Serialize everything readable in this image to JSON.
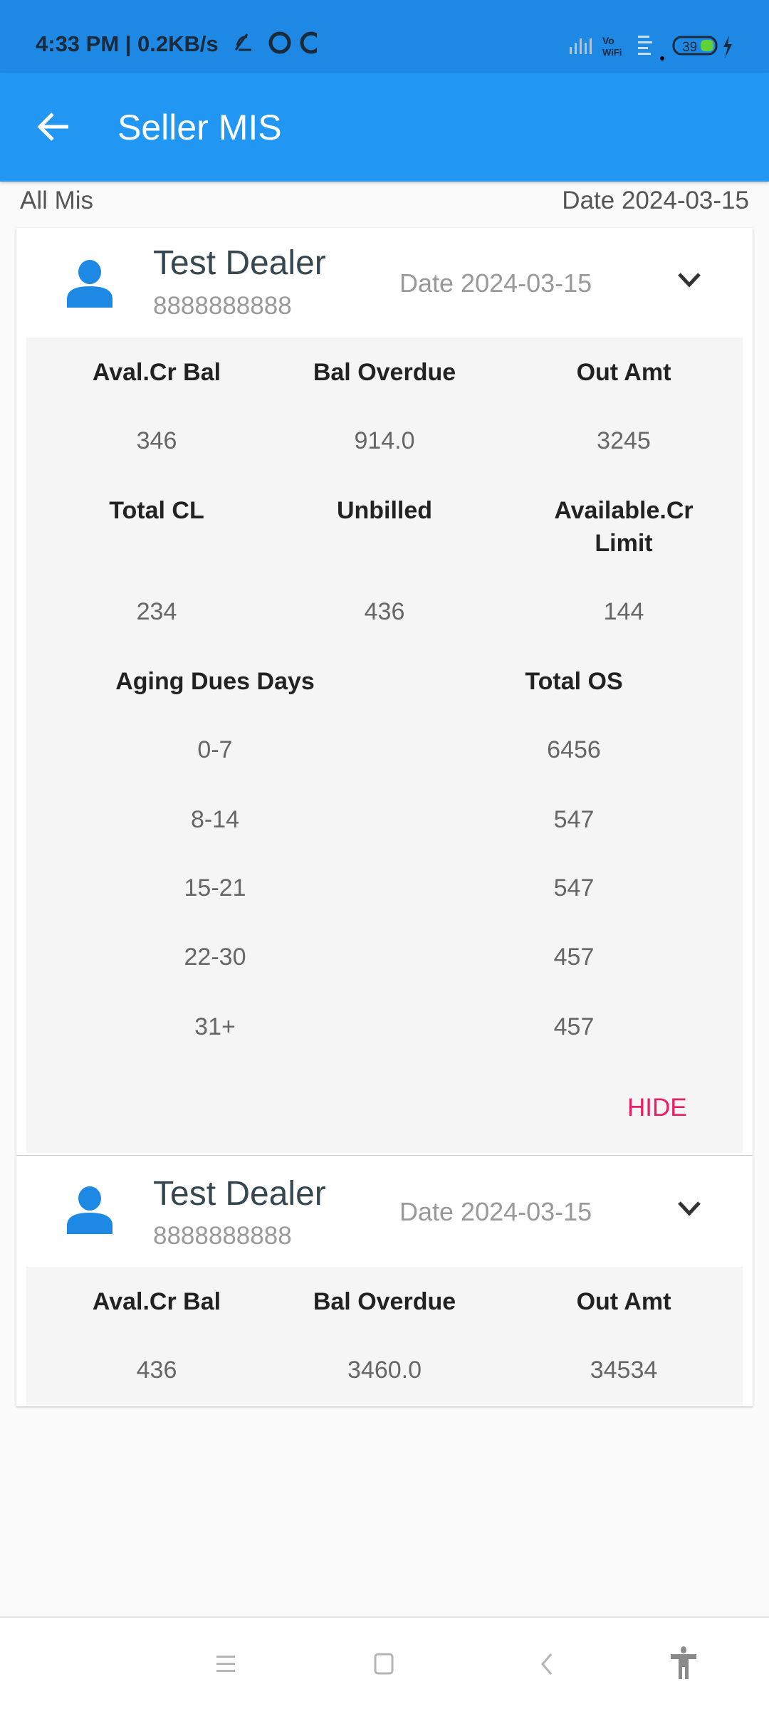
{
  "status_bar": {
    "time_text": "4:33 PM | 0.2KB/s",
    "battery": "39"
  },
  "app_bar": {
    "title": "Seller MIS"
  },
  "header": {
    "left": "All Mis",
    "right": "Date 2024-03-15"
  },
  "colors": {
    "primary": "#2196f3",
    "status": "#1e88e5",
    "accent": "#e91e63",
    "avatar": "#1e88e5"
  },
  "cards": [
    {
      "name": "Test Dealer",
      "phone": "8888888888",
      "date": "Date 2024-03-15",
      "metrics": [
        {
          "label": "Aval.Cr Bal",
          "value": "346"
        },
        {
          "label": "Bal Overdue",
          "value": "914.0"
        },
        {
          "label": "Out Amt",
          "value": "3245"
        },
        {
          "label": "Total CL",
          "value": "234"
        },
        {
          "label": "Unbilled",
          "value": "436"
        },
        {
          "label": "Available.Cr Limit",
          "value": "144"
        }
      ],
      "aging_header": {
        "days": "Aging Dues Days",
        "total": "Total OS"
      },
      "aging": [
        {
          "days": "0-7",
          "total": "6456"
        },
        {
          "days": "8-14",
          "total": "547"
        },
        {
          "days": "15-21",
          "total": "547"
        },
        {
          "days": "22-30",
          "total": "457"
        },
        {
          "days": "31+",
          "total": "457"
        }
      ],
      "hide_label": "HIDE"
    },
    {
      "name": "Test Dealer",
      "phone": "8888888888",
      "date": "Date 2024-03-15",
      "metrics": [
        {
          "label": "Aval.Cr Bal",
          "value": "436"
        },
        {
          "label": "Bal Overdue",
          "value": "3460.0"
        },
        {
          "label": "Out Amt",
          "value": "34534"
        }
      ]
    }
  ]
}
